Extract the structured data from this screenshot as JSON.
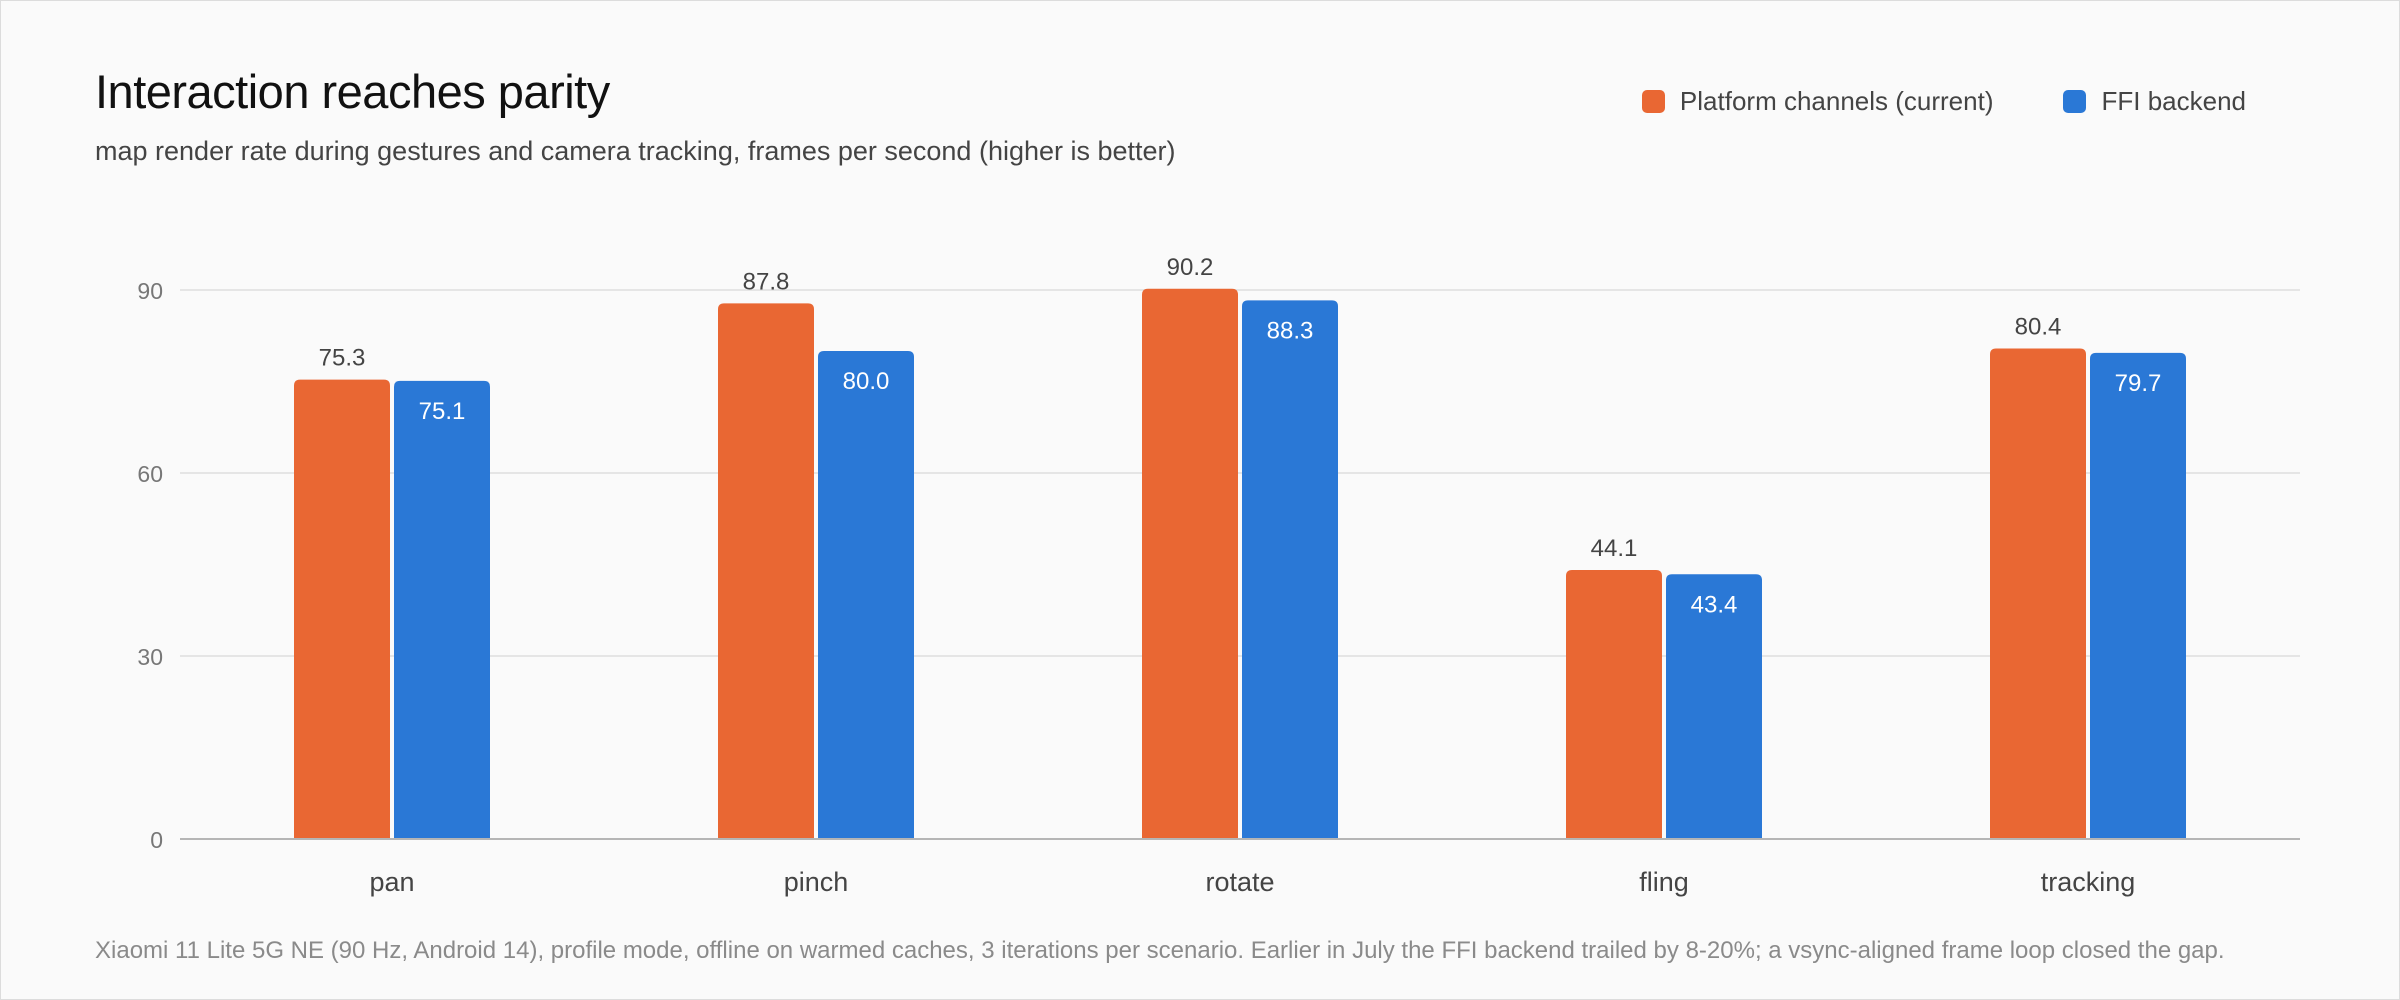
{
  "title": "Interaction reaches parity",
  "subtitle": "map render rate during gestures and camera tracking, frames per second (higher is better)",
  "footnote": "Xiaomi 11 Lite 5G NE (90 Hz, Android 14), profile mode, offline on warmed caches, 3 iterations per scenario. Earlier in July the FFI backend trailed by 8-20%; a vsync-aligned frame loop closed the gap.",
  "colors": {
    "platform": "#e96733",
    "ffi": "#2a78d6"
  },
  "chart_data": {
    "type": "bar",
    "categories": [
      "pan",
      "pinch",
      "rotate",
      "fling",
      "tracking"
    ],
    "series": [
      {
        "name": "Platform channels (current)",
        "values": [
          75.3,
          87.8,
          90.2,
          44.1,
          80.4
        ],
        "labels": [
          "75.3",
          "87.8",
          "90.2",
          "44.1",
          "80.4"
        ],
        "label_position": "outside"
      },
      {
        "name": "FFI backend",
        "values": [
          75.1,
          80.0,
          88.3,
          43.4,
          79.7
        ],
        "labels": [
          "75.1",
          "80.0",
          "88.3",
          "43.4",
          "79.7"
        ],
        "label_position": "inside"
      }
    ],
    "yticks": [
      0,
      30,
      60,
      90
    ],
    "ylim": [
      0,
      90
    ],
    "grid": true,
    "legend": "top-right"
  }
}
